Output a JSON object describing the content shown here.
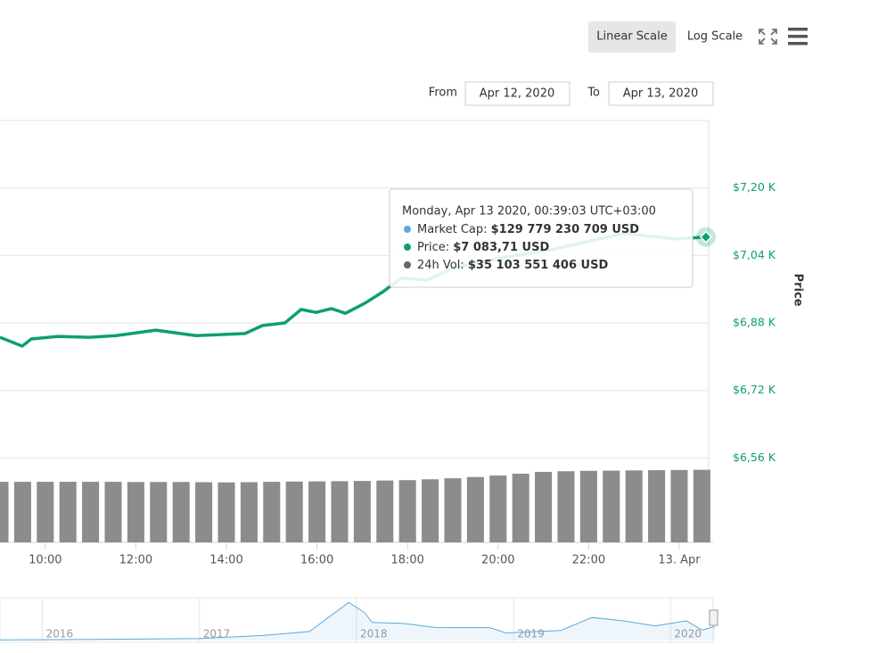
{
  "chart_data": {
    "type": "line",
    "buttons": [
      "Linear Scale",
      "Log Scale"
    ],
    "range": {
      "from_label": "From",
      "from": "Apr 12, 2020",
      "to_label": "To",
      "to": "Apr 13, 2020"
    },
    "y_axis_label": "Price",
    "xlim": [
      9,
      24.65
    ],
    "xticks": [
      {
        "value": 10,
        "label": "10:00"
      },
      {
        "value": 12,
        "label": "12:00"
      },
      {
        "value": 14,
        "label": "14:00"
      },
      {
        "value": 16,
        "label": "16:00"
      },
      {
        "value": 18,
        "label": "18:00"
      },
      {
        "value": 20,
        "label": "20:00"
      },
      {
        "value": 22,
        "label": "22:00"
      },
      {
        "value": 24,
        "label": "13. Apr"
      }
    ],
    "ylim": [
      6360,
      7360
    ],
    "yticks": [
      {
        "value": 6560,
        "label": "$6,56 K"
      },
      {
        "value": 6720,
        "label": "$6,72 K"
      },
      {
        "value": 6880,
        "label": "$6,88 K"
      },
      {
        "value": 7040,
        "label": "$7,04 K"
      },
      {
        "value": 7200,
        "label": "$7,20 K"
      }
    ],
    "y2lim": [
      0,
      204000000000
    ],
    "grid": true,
    "series": [
      {
        "name": "Price",
        "color": "#0e9f6e",
        "x": [
          9.0,
          9.49,
          9.69,
          10.28,
          10.97,
          11.56,
          12.44,
          13.33,
          14.41,
          14.8,
          15.29,
          15.65,
          15.98,
          16.32,
          16.63,
          17.06,
          17.46,
          17.85,
          18.44,
          19.03,
          20.01,
          21.19,
          22.76,
          23.94,
          24.59
        ],
        "values": [
          6846,
          6825,
          6842,
          6848,
          6846,
          6850,
          6863,
          6850,
          6855,
          6874,
          6880,
          6912,
          6905,
          6914,
          6903,
          6927,
          6954,
          6986,
          6982,
          7011,
          7033,
          7054,
          7092,
          7079,
          7083.71
        ]
      },
      {
        "name": "24h Vol",
        "color": "#8c8c8c",
        "axis": "y2",
        "type": "bar",
        "x": [
          9.0,
          9.5,
          10.0,
          10.5,
          11.0,
          11.5,
          12.0,
          12.5,
          13.0,
          13.5,
          14.0,
          14.5,
          15.0,
          15.5,
          16.0,
          16.5,
          17.0,
          17.5,
          18.0,
          18.5,
          19.0,
          19.5,
          20.0,
          20.5,
          21.0,
          21.5,
          22.0,
          22.5,
          23.0,
          23.5,
          24.0,
          24.5
        ],
        "values": [
          29300000000,
          29300000000,
          29300000000,
          29300000000,
          29300000000,
          29300000000,
          29200000000,
          29200000000,
          29200000000,
          29100000000,
          29000000000,
          29100000000,
          29300000000,
          29400000000,
          29500000000,
          29600000000,
          29700000000,
          29900000000,
          30100000000,
          30500000000,
          31000000000,
          31600000000,
          32300000000,
          33200000000,
          34100000000,
          34400000000,
          34600000000,
          34700000000,
          34800000000,
          34900000000,
          35000000000,
          35103551406
        ]
      }
    ],
    "tooltip": {
      "date": "Monday, Apr 13 2020, 00:39:03 UTC+03:00",
      "rows": [
        {
          "name": "Market Cap: ",
          "value": "$129 779 230 709 USD",
          "color": "#5aa9e0"
        },
        {
          "name": "Price: ",
          "value": "$7 083,71 USD",
          "color": "#0e9f6e"
        },
        {
          "name": "24h Vol: ",
          "value": "$35 103 551 406 USD",
          "color": "#666666"
        }
      ]
    },
    "navigator": {
      "xlim": [
        2015.73,
        2020.27
      ],
      "ylim": [
        0,
        20500
      ],
      "xticks": [
        2016,
        2017,
        2018,
        2019,
        2020
      ],
      "x": [
        2015.73,
        2016.5,
        2017.0,
        2017.4,
        2017.7,
        2017.95,
        2018.05,
        2018.1,
        2018.3,
        2018.5,
        2018.85,
        2018.95,
        2019.3,
        2019.5,
        2019.7,
        2019.9,
        2020.1,
        2020.2,
        2020.28
      ],
      "values": [
        300,
        650,
        1000,
        2500,
        4500,
        19000,
        14000,
        9000,
        8500,
        6500,
        6400,
        3800,
        5000,
        11500,
        9800,
        7300,
        9800,
        5200,
        7000
      ],
      "color": "#5aa9e0"
    }
  }
}
